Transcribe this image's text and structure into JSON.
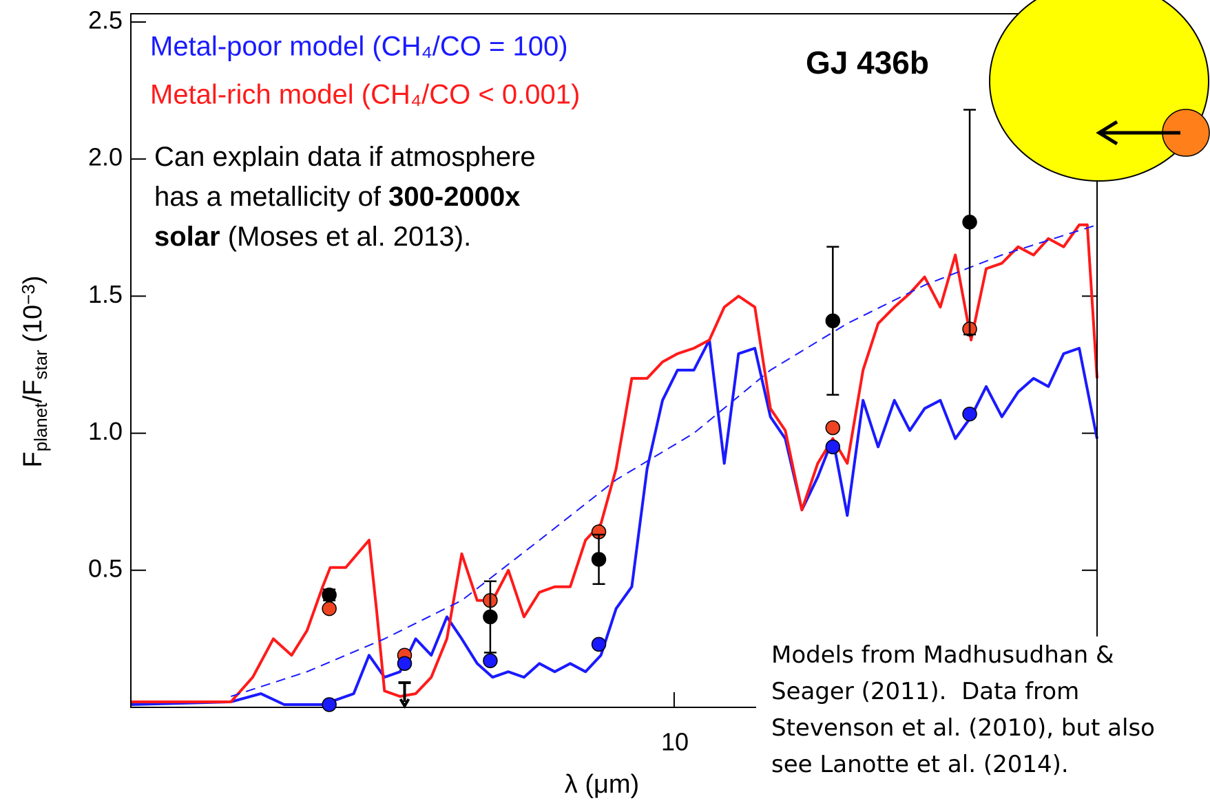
{
  "chart_data": {
    "type": "line",
    "title": "GJ 436b",
    "xlabel": "λ (μm)",
    "ylabel_parts": [
      "F",
      "planet",
      "/F",
      "star",
      " (10",
      "−3",
      ")"
    ],
    "x_scale": "log",
    "xlim": [
      2.0,
      35.0
    ],
    "ylim": [
      0,
      2.53
    ],
    "xticks": [
      10
    ],
    "yticks": [
      0.5,
      {
        "value": 1,
        "label": "1.0"
      },
      1.5,
      {
        "value": 2,
        "label": "2.0"
      },
      2.5
    ],
    "series": [
      {
        "name": "Metal-poor model (CH₄/CO = 100)",
        "color": "#1a1aff",
        "x": [
          2.0,
          2.69,
          2.94,
          3.15,
          3.53,
          3.87,
          4.05,
          4.24,
          4.44,
          4.65,
          4.87,
          5.1,
          5.33,
          5.58,
          5.84,
          6.12,
          6.41,
          6.71,
          7.02,
          7.35,
          7.69,
          8.05,
          8.42,
          8.82,
          9.23,
          9.66,
          10.1,
          10.6,
          11.1,
          11.6,
          12.1,
          12.7,
          13.3,
          13.9,
          14.6,
          15.3,
          16.0,
          16.7,
          17.5,
          18.3,
          19.2,
          20.1,
          21.0,
          22.0,
          23.0,
          24.1,
          25.2,
          26.4,
          27.7,
          29.0,
          30.3,
          31.7,
          33.2,
          35.0
        ],
        "values": [
          0.01,
          0.02,
          0.05,
          0.01,
          0.01,
          0.05,
          0.19,
          0.11,
          0.13,
          0.25,
          0.19,
          0.33,
          0.25,
          0.16,
          0.11,
          0.13,
          0.11,
          0.16,
          0.13,
          0.16,
          0.13,
          0.19,
          0.36,
          0.44,
          0.87,
          1.12,
          1.23,
          1.23,
          1.34,
          0.89,
          1.29,
          1.31,
          1.06,
          0.98,
          0.72,
          0.84,
          0.98,
          0.7,
          1.12,
          0.95,
          1.12,
          1.01,
          1.09,
          1.12,
          0.98,
          1.06,
          1.17,
          1.06,
          1.15,
          1.2,
          1.17,
          1.29,
          1.31,
          0.98
        ]
      },
      {
        "name": "Metal-rich model (CH₄/CO < 0.001)",
        "color": "#ff1a1a",
        "x": [
          2.0,
          2.14,
          2.4,
          2.69,
          2.87,
          3.05,
          3.22,
          3.37,
          3.53,
          3.61,
          3.78,
          4.05,
          4.14,
          4.24,
          4.44,
          4.65,
          4.87,
          5.1,
          5.33,
          5.58,
          5.84,
          6.12,
          6.41,
          6.71,
          7.02,
          7.35,
          7.69,
          8.05,
          8.42,
          8.82,
          9.23,
          9.66,
          10.1,
          10.6,
          11.1,
          11.6,
          12.1,
          12.7,
          13.3,
          13.9,
          14.6,
          15.3,
          16.0,
          16.7,
          17.5,
          18.3,
          19.2,
          20.1,
          21.0,
          22.0,
          23.0,
          24.1,
          25.2,
          26.4,
          27.7,
          29.0,
          30.3,
          31.7,
          33.2,
          34.0,
          35.0
        ],
        "values": [
          0.02,
          0.02,
          0.02,
          0.02,
          0.11,
          0.25,
          0.19,
          0.28,
          0.44,
          0.51,
          0.51,
          0.61,
          0.36,
          0.06,
          0.04,
          0.05,
          0.11,
          0.25,
          0.56,
          0.39,
          0.39,
          0.5,
          0.33,
          0.42,
          0.44,
          0.44,
          0.61,
          0.67,
          0.87,
          1.2,
          1.2,
          1.26,
          1.29,
          1.31,
          1.34,
          1.46,
          1.5,
          1.46,
          1.09,
          1.01,
          0.72,
          0.89,
          0.98,
          0.89,
          1.23,
          1.4,
          1.46,
          1.51,
          1.57,
          1.46,
          1.65,
          1.34,
          1.6,
          1.62,
          1.68,
          1.65,
          1.71,
          1.68,
          1.76,
          1.76,
          1.2
        ]
      },
      {
        "color": "#1a1aff",
        "dash": true,
        "x": [
          2.69,
          3.37,
          4.24,
          5.33,
          6.71,
          8.42,
          10.6,
          13.3,
          16.7,
          21.0,
          26.4,
          35.0
        ],
        "values": [
          0.04,
          0.13,
          0.25,
          0.39,
          0.61,
          0.83,
          1.0,
          1.23,
          1.4,
          1.54,
          1.65,
          1.76
        ]
      }
    ],
    "points": [
      {
        "color": "#ee4422",
        "x": [
          3.6,
          4.5,
          5.8,
          8.0,
          16,
          24
        ],
        "values": [
          0.36,
          0.19,
          0.39,
          0.64,
          1.02,
          1.38
        ]
      },
      {
        "color": "#1a1aff",
        "x": [
          3.6,
          4.5,
          5.8,
          8.0,
          16,
          24
        ],
        "values": [
          0.01,
          0.16,
          0.17,
          0.23,
          0.95,
          1.07
        ]
      },
      {
        "color": "#000000",
        "x": [
          3.6,
          5.8,
          8.0,
          16,
          24
        ],
        "values": [
          0.41,
          0.33,
          0.54,
          1.41,
          1.77
        ],
        "errors": [
          0.02,
          0.13,
          0.09,
          0.27,
          0.41
        ]
      }
    ],
    "upper_limit": {
      "x": 4.5,
      "value": 0.09
    },
    "annotation": [
      [
        {
          "text": "Can explain data if atmosphere"
        }
      ],
      [
        {
          "text": "has a metallicity of "
        },
        {
          "text": "300-2000x",
          "bold": true
        }
      ],
      [
        {
          "text": "solar",
          "bold": true
        },
        {
          "text": " (Moses et al. 2013)."
        }
      ]
    ],
    "note": [
      "Models from Madhusudhan &",
      "Seager (2011).  Data from",
      "Stevenson et al. (2010), but also",
      "see Lanotte et al. (2014)."
    ]
  }
}
